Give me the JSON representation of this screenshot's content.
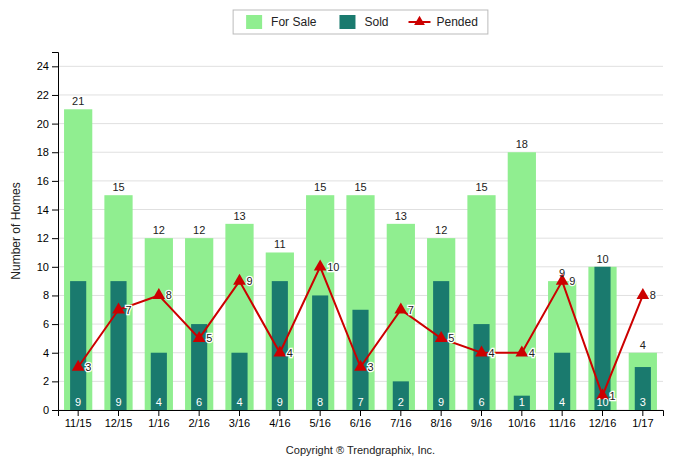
{
  "chart_data": {
    "type": "bar",
    "categories": [
      "11/15",
      "12/15",
      "1/16",
      "2/16",
      "3/16",
      "4/16",
      "5/16",
      "6/16",
      "7/16",
      "8/16",
      "9/16",
      "10/16",
      "11/16",
      "12/16",
      "1/17"
    ],
    "series": [
      {
        "name": "For Sale",
        "color": "#90ee90",
        "values": [
          21,
          15,
          12,
          12,
          13,
          11,
          15,
          15,
          13,
          12,
          15,
          18,
          9,
          10,
          4
        ]
      },
      {
        "name": "Sold",
        "color": "#1a7a6e",
        "values": [
          9,
          9,
          4,
          6,
          4,
          9,
          8,
          7,
          2,
          9,
          6,
          1,
          4,
          10,
          3
        ]
      },
      {
        "name": "Pended",
        "type": "line",
        "color": "#cc0000",
        "marker": "triangle",
        "values": [
          3,
          7,
          8,
          5,
          9,
          4,
          10,
          3,
          7,
          5,
          4,
          4,
          9,
          1,
          8
        ]
      }
    ],
    "ylabel": "Number of Homes",
    "xlabel": "Copyright ® Trendgraphix, Inc.",
    "ylim": [
      0,
      25
    ],
    "yticks": [
      0,
      2,
      4,
      6,
      8,
      10,
      12,
      14,
      16,
      18,
      20,
      22,
      24
    ],
    "grid": true,
    "legend": "top",
    "data_labels": true
  }
}
